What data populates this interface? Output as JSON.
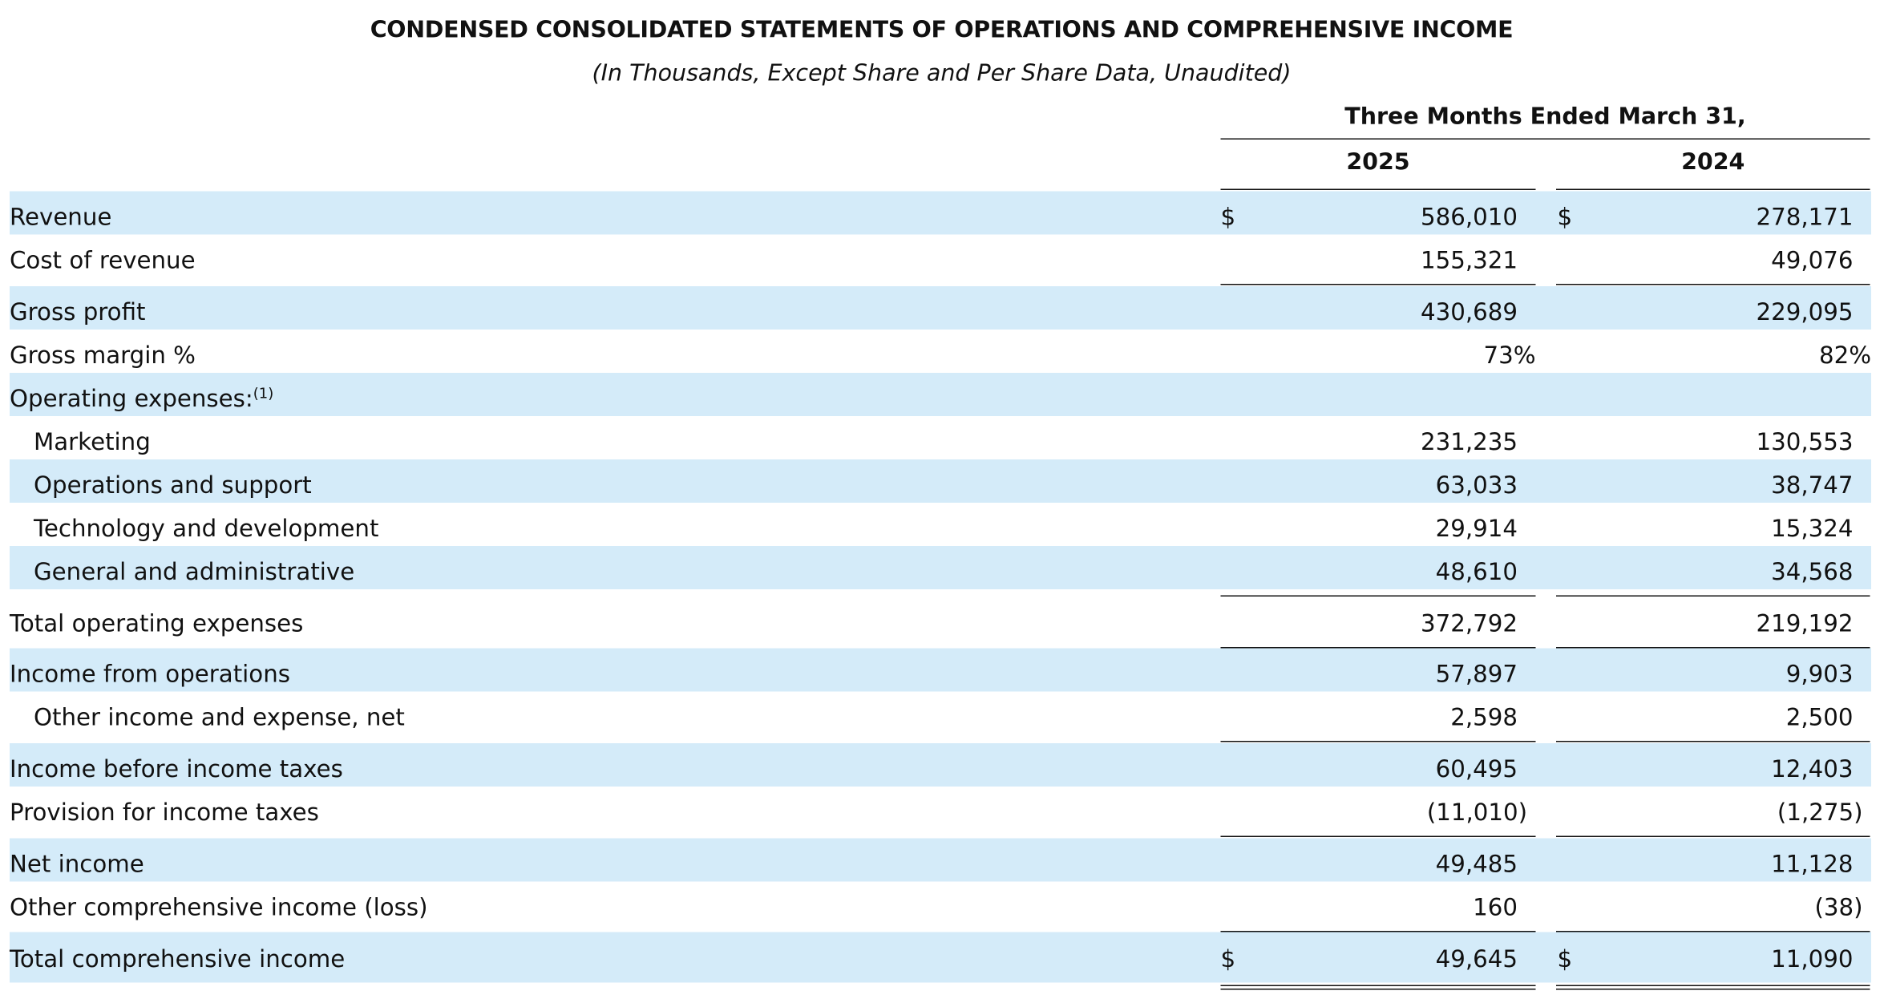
{
  "header": {
    "title": "CONDENSED CONSOLIDATED STATEMENTS OF OPERATIONS AND COMPREHENSIVE INCOME",
    "subtitle": "(In Thousands, Except Share and Per Share Data, Unaudited)",
    "period": "Three Months Ended March 31,",
    "years": [
      "2025",
      "2024"
    ],
    "currency_symbol": "$"
  },
  "rows": [
    {
      "label": "Revenue",
      "v2025": "586,010",
      "v2024": "278,171"
    },
    {
      "label": "Cost of revenue",
      "v2025": "155,321",
      "v2024": "49,076"
    },
    {
      "label": "Gross profit",
      "v2025": "430,689",
      "v2024": "229,095"
    },
    {
      "label": "Gross margin %",
      "v2025": "73%",
      "v2024": "82%"
    },
    {
      "label": "Operating expenses:",
      "footnote": "(1)",
      "v2025": "",
      "v2024": ""
    },
    {
      "label": "Marketing",
      "v2025": "231,235",
      "v2024": "130,553"
    },
    {
      "label": "Operations and support",
      "v2025": "63,033",
      "v2024": "38,747"
    },
    {
      "label": "Technology and development",
      "v2025": "29,914",
      "v2024": "15,324"
    },
    {
      "label": "General and administrative",
      "v2025": "48,610",
      "v2024": "34,568"
    },
    {
      "label": "Total operating expenses",
      "v2025": "372,792",
      "v2024": "219,192"
    },
    {
      "label": "Income from operations",
      "v2025": "57,897",
      "v2024": "9,903"
    },
    {
      "label": "Other income and expense, net",
      "v2025": "2,598",
      "v2024": "2,500"
    },
    {
      "label": "Income before income taxes",
      "v2025": "60,495",
      "v2024": "12,403"
    },
    {
      "label": "Provision for income taxes",
      "v2025": "(11,010)",
      "v2024": "(1,275)"
    },
    {
      "label": "Net income",
      "v2025": "49,485",
      "v2024": "11,128"
    },
    {
      "label": "Other comprehensive income (loss)",
      "v2025": "160",
      "v2024": "(38)"
    },
    {
      "label": "Total comprehensive income",
      "v2025": "49,645",
      "v2024": "11,090"
    }
  ]
}
